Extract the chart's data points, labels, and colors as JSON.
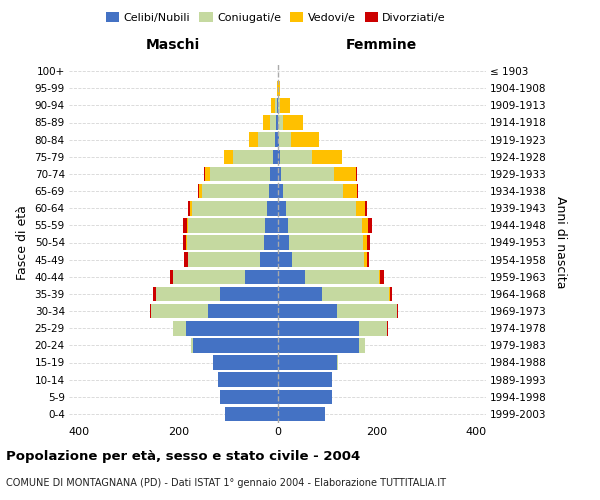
{
  "age_groups": [
    "0-4",
    "5-9",
    "10-14",
    "15-19",
    "20-24",
    "25-29",
    "30-34",
    "35-39",
    "40-44",
    "45-49",
    "50-54",
    "55-59",
    "60-64",
    "65-69",
    "70-74",
    "75-79",
    "80-84",
    "85-89",
    "90-94",
    "95-99",
    "100+"
  ],
  "birth_years": [
    "1999-2003",
    "1994-1998",
    "1989-1993",
    "1984-1988",
    "1979-1983",
    "1974-1978",
    "1969-1973",
    "1964-1968",
    "1959-1963",
    "1954-1958",
    "1949-1953",
    "1944-1948",
    "1939-1943",
    "1934-1938",
    "1929-1933",
    "1924-1928",
    "1919-1923",
    "1914-1918",
    "1909-1913",
    "1904-1908",
    "≤ 1903"
  ],
  "colors": {
    "celibi": "#4472c4",
    "coniugati": "#c5d9a0",
    "vedovi": "#ffc000",
    "divorziati": "#cc0000"
  },
  "maschi": {
    "celibi": [
      105,
      115,
      120,
      130,
      170,
      185,
      140,
      115,
      65,
      35,
      28,
      25,
      22,
      18,
      15,
      10,
      5,
      3,
      2,
      0,
      0
    ],
    "coniugati": [
      0,
      0,
      0,
      0,
      5,
      25,
      115,
      130,
      145,
      145,
      155,
      155,
      150,
      135,
      120,
      80,
      35,
      12,
      4,
      0,
      0
    ],
    "vedovi": [
      0,
      0,
      0,
      0,
      0,
      0,
      0,
      0,
      0,
      1,
      2,
      3,
      4,
      5,
      12,
      18,
      18,
      15,
      8,
      2,
      0
    ],
    "divorziati": [
      0,
      0,
      0,
      0,
      0,
      0,
      2,
      5,
      6,
      7,
      6,
      7,
      5,
      3,
      2,
      0,
      0,
      0,
      0,
      0,
      0
    ]
  },
  "femmine": {
    "celibi": [
      95,
      110,
      110,
      120,
      165,
      165,
      120,
      90,
      55,
      30,
      24,
      22,
      18,
      12,
      8,
      5,
      3,
      2,
      2,
      1,
      0
    ],
    "coniugati": [
      0,
      0,
      0,
      2,
      12,
      55,
      120,
      135,
      150,
      145,
      148,
      148,
      140,
      120,
      105,
      65,
      25,
      10,
      3,
      0,
      0
    ],
    "vedovi": [
      0,
      0,
      0,
      0,
      0,
      0,
      1,
      1,
      2,
      5,
      8,
      12,
      18,
      28,
      45,
      60,
      55,
      40,
      20,
      5,
      2
    ],
    "divorziati": [
      0,
      0,
      0,
      0,
      0,
      2,
      2,
      5,
      8,
      5,
      7,
      8,
      5,
      3,
      2,
      0,
      0,
      0,
      0,
      0,
      0
    ]
  },
  "xlim": 420,
  "xticks": [
    -400,
    -200,
    0,
    200,
    400
  ],
  "title": "Popolazione per età, sesso e stato civile - 2004",
  "subtitle": "COMUNE DI MONTAGNANA (PD) - Dati ISTAT 1° gennaio 2004 - Elaborazione TUTTITALIA.IT",
  "ylabel_left": "Fasce di età",
  "ylabel_right": "Anni di nascita",
  "xlabel_left": "Maschi",
  "xlabel_right": "Femmine",
  "bg_color": "#ffffff",
  "grid_color": "#cccccc",
  "bar_height": 0.85
}
